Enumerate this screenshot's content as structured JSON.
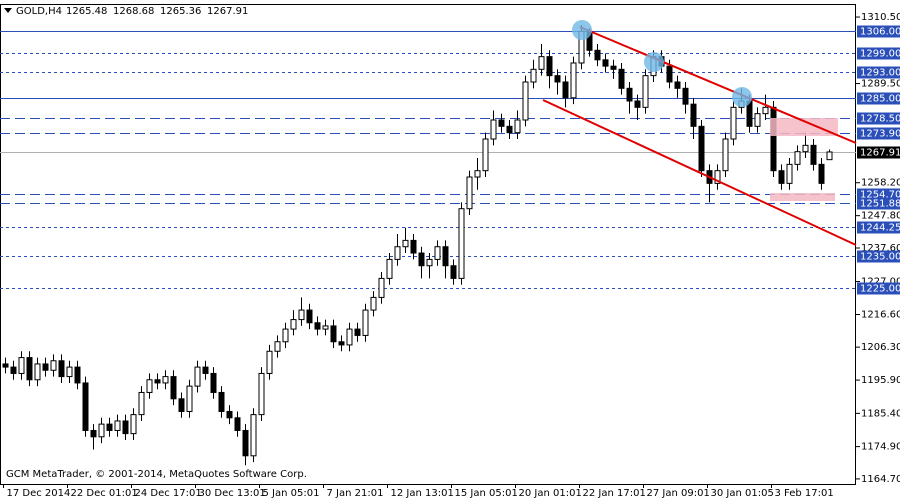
{
  "chart_data": {
    "type": "candlestick",
    "title": "GOLD,H4",
    "footer": "GCM MetaTrader, © 2001-2014, MetaQuotes Software Corp.",
    "categories": [
      "17 Dec 2014",
      null,
      null,
      null,
      null,
      null,
      null,
      null,
      "22 Dec 01:01",
      null,
      null,
      null,
      null,
      null,
      null,
      null,
      "24 Dec 17:01",
      null,
      null,
      null,
      null,
      null,
      null,
      null,
      "30 Dec 13:01",
      null,
      null,
      null,
      null,
      null,
      null,
      null,
      "5 Jan 05:01",
      null,
      null,
      null,
      null,
      null,
      null,
      null,
      "7 Jan 21:01",
      null,
      null,
      null,
      null,
      null,
      null,
      null,
      "12 Jan 13:01",
      null,
      null,
      null,
      null,
      null,
      null,
      null,
      "15 Jan 05:01",
      null,
      null,
      null,
      null,
      null,
      null,
      null,
      "20 Jan 01:01",
      null,
      null,
      null,
      null,
      null,
      null,
      null,
      "22 Jan 17:01",
      null,
      null,
      null,
      null,
      null,
      null,
      null,
      "27 Jan 09:01",
      null,
      null,
      null,
      null,
      null,
      null,
      null,
      "30 Jan 01:05",
      null,
      null,
      null,
      null,
      null,
      null,
      null,
      "3 Feb 17:01",
      null,
      null,
      null,
      null,
      null,
      null,
      null
    ],
    "open": [
      1201,
      1200,
      1198,
      1203,
      1196,
      1201,
      1199,
      1202,
      1197,
      1200,
      1195,
      1180,
      1178,
      1182,
      1180,
      1183,
      1179,
      1185,
      1192,
      1196,
      1195,
      1197,
      1190,
      1186,
      1194,
      1200,
      1198,
      1192,
      1186,
      1184,
      1180,
      1172,
      1185,
      1198,
      1205,
      1208,
      1212,
      1215,
      1218,
      1214,
      1212,
      1213,
      1208,
      1207,
      1212,
      1210,
      1218,
      1222,
      1228,
      1234,
      1238,
      1240,
      1236,
      1232,
      1234,
      1238,
      1232,
      1228,
      1250,
      1260,
      1262,
      1272,
      1278,
      1276,
      1274,
      1278,
      1290,
      1294,
      1298,
      1292,
      1290,
      1285,
      1296,
      1306,
      1300,
      1297,
      1295,
      1294,
      1288,
      1284,
      1282,
      1292,
      1298,
      1295,
      1290,
      1288,
      1283,
      1276,
      1262,
      1258,
      1262,
      1272,
      1282,
      1284,
      1276,
      1280,
      1282,
      1262,
      1258,
      1264,
      1268,
      1270,
      1264,
      1265.48
    ],
    "high": [
      1203,
      1202,
      1205,
      1205,
      1203,
      1203,
      1204,
      1204,
      1202,
      1202,
      1197,
      1182,
      1184,
      1184,
      1185,
      1185,
      1187,
      1194,
      1198,
      1198,
      1199,
      1199,
      1192,
      1196,
      1202,
      1202,
      1200,
      1194,
      1188,
      1186,
      1182,
      1187,
      1200,
      1207,
      1210,
      1214,
      1218,
      1222,
      1220,
      1216,
      1215,
      1215,
      1210,
      1214,
      1214,
      1220,
      1224,
      1230,
      1236,
      1242,
      1244,
      1242,
      1238,
      1236,
      1240,
      1240,
      1234,
      1252,
      1262,
      1266,
      1274,
      1281,
      1280,
      1278,
      1281,
      1292,
      1297,
      1302,
      1300,
      1294,
      1292,
      1298,
      1308,
      1307,
      1302,
      1299,
      1297,
      1296,
      1290,
      1286,
      1294,
      1300,
      1300,
      1297,
      1292,
      1290,
      1285,
      1278,
      1264,
      1264,
      1274,
      1284,
      1288,
      1286,
      1282,
      1286,
      1284,
      1264,
      1266,
      1270,
      1274,
      1272,
      1266,
      1268.68
    ],
    "low": [
      1198,
      1196,
      1196,
      1194,
      1194,
      1197,
      1197,
      1195,
      1195,
      1193,
      1178,
      1174,
      1176,
      1178,
      1178,
      1177,
      1177,
      1183,
      1190,
      1193,
      1193,
      1188,
      1184,
      1184,
      1192,
      1196,
      1190,
      1184,
      1182,
      1178,
      1169,
      1170,
      1183,
      1196,
      1203,
      1206,
      1210,
      1213,
      1212,
      1210,
      1210,
      1206,
      1205,
      1205,
      1208,
      1208,
      1216,
      1220,
      1226,
      1232,
      1236,
      1234,
      1228,
      1228,
      1232,
      1228,
      1226,
      1226,
      1248,
      1256,
      1260,
      1270,
      1274,
      1272,
      1272,
      1276,
      1288,
      1292,
      1288,
      1286,
      1282,
      1283,
      1294,
      1298,
      1295,
      1293,
      1291,
      1286,
      1280,
      1278,
      1280,
      1290,
      1293,
      1288,
      1285,
      1280,
      1272,
      1260,
      1252,
      1256,
      1260,
      1270,
      1280,
      1274,
      1274,
      1278,
      1260,
      1256,
      1256,
      1262,
      1266,
      1262,
      1256,
      1265.36
    ],
    "close": [
      1200,
      1198,
      1203,
      1196,
      1201,
      1199,
      1202,
      1197,
      1200,
      1195,
      1180,
      1178,
      1182,
      1180,
      1183,
      1179,
      1185,
      1192,
      1196,
      1195,
      1197,
      1190,
      1186,
      1194,
      1200,
      1198,
      1192,
      1186,
      1184,
      1180,
      1172,
      1185,
      1198,
      1205,
      1208,
      1212,
      1215,
      1218,
      1214,
      1212,
      1213,
      1208,
      1207,
      1212,
      1210,
      1218,
      1222,
      1228,
      1234,
      1238,
      1240,
      1236,
      1232,
      1234,
      1238,
      1232,
      1228,
      1250,
      1260,
      1262,
      1272,
      1278,
      1276,
      1274,
      1278,
      1290,
      1294,
      1298,
      1292,
      1290,
      1285,
      1296,
      1306,
      1300,
      1297,
      1295,
      1294,
      1288,
      1284,
      1282,
      1292,
      1298,
      1295,
      1290,
      1288,
      1283,
      1276,
      1262,
      1258,
      1262,
      1272,
      1282,
      1284,
      1276,
      1280,
      1282,
      1262,
      1258,
      1264,
      1268,
      1270,
      1264,
      1258,
      1267.91
    ],
    "ylim": [
      1163.1,
      1314.3
    ],
    "yticks": [
      {
        "value": 1310.5,
        "label": "1310.50"
      },
      {
        "value": 1289.5,
        "label": "1289.50"
      },
      {
        "value": 1258.2,
        "label": "1258.20"
      },
      {
        "value": 1247.8,
        "label": "1247.80"
      },
      {
        "value": 1237.6,
        "label": "1237.60"
      },
      {
        "value": 1227,
        "label": "1227.00"
      },
      {
        "value": 1216.6,
        "label": "1216.60"
      },
      {
        "value": 1206.3,
        "label": "1206.30"
      },
      {
        "value": 1195.9,
        "label": "1195.90"
      },
      {
        "value": 1185.4,
        "label": "1185.40"
      },
      {
        "value": 1174.9,
        "label": "1174.90"
      },
      {
        "value": 1164.7,
        "label": "1164.70"
      }
    ],
    "levels": [
      {
        "value": 1306,
        "label": "1306.00",
        "style": "solid"
      },
      {
        "value": 1299,
        "label": "1299.00",
        "style": "dash"
      },
      {
        "value": 1293,
        "label": "1293.00",
        "style": "dash"
      },
      {
        "value": 1285,
        "label": "1285.00",
        "style": "solid"
      },
      {
        "value": 1278.5,
        "label": "1278.50",
        "style": "longdash"
      },
      {
        "value": 1273.9,
        "label": "1273.90",
        "style": "longdash"
      },
      {
        "value": 1267.91,
        "label": "1267.91",
        "style": "current"
      },
      {
        "value": 1254.7,
        "label": "1254.70",
        "style": "longdash"
      },
      {
        "value": 1251.88,
        "label": "1251.88",
        "style": "longdash"
      },
      {
        "value": 1244.25,
        "label": "1244.25",
        "style": "dash"
      },
      {
        "value": 1235,
        "label": "1235.00",
        "style": "dash"
      },
      {
        "value": 1225,
        "label": "1225.00",
        "style": "dash"
      }
    ],
    "level_color": "#2b4fb8",
    "bull_color": "#ffffff",
    "bear_color": "#000000"
  }
}
